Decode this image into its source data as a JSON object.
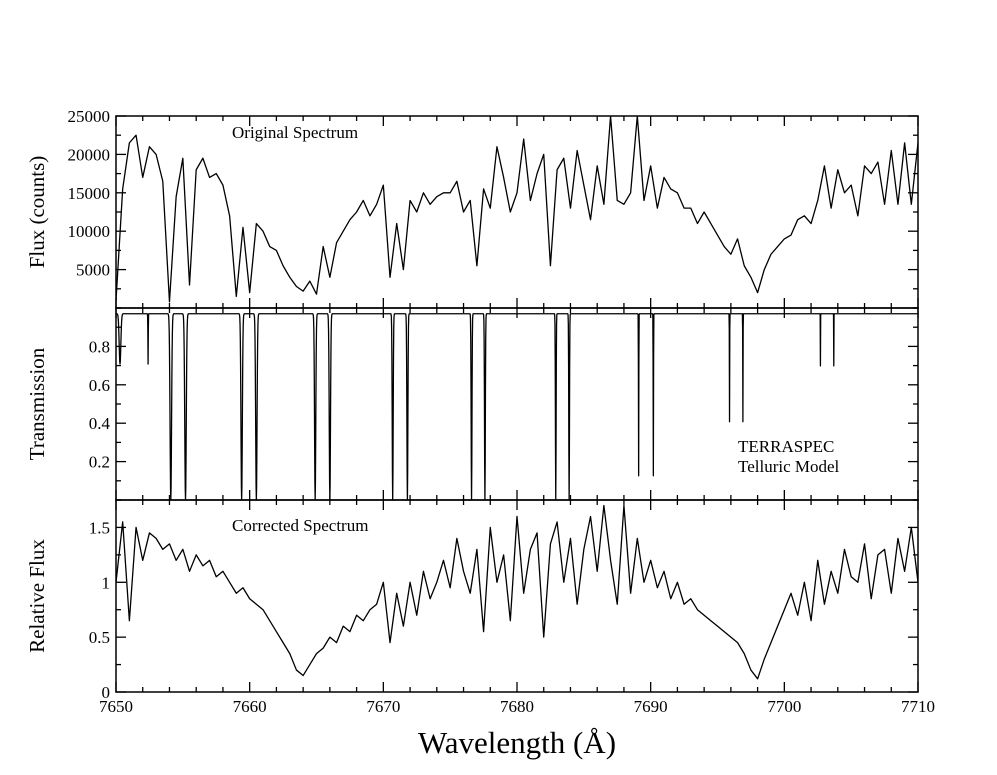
{
  "chart_data": {
    "type": "line",
    "xlabel": "Wavelength (Å)",
    "xlim": [
      7650,
      7710
    ],
    "xticks": [
      7650,
      7660,
      7670,
      7680,
      7690,
      7700,
      7710
    ],
    "panels": [
      {
        "id": "original",
        "ylabel": "Flux (counts)",
        "ylim": [
          0,
          25000
        ],
        "yticks": [
          5000,
          10000,
          15000,
          20000,
          25000
        ],
        "annotation": "Original Spectrum",
        "series": [
          {
            "x": [
              7650.0,
              7650.5,
              7651.0,
              7651.5,
              7652.0,
              7652.5,
              7653.0,
              7653.5,
              7654.0,
              7654.5,
              7655.0,
              7655.5,
              7656.0,
              7656.5,
              7657.0,
              7657.5,
              7658.0,
              7658.5,
              7659.0,
              7659.5,
              7660.0,
              7660.5,
              7661.0,
              7661.5,
              7662.0,
              7662.5,
              7663.0,
              7663.5,
              7664.0,
              7664.5,
              7665.0,
              7665.5,
              7666.0,
              7666.5,
              7667.0,
              7667.5,
              7668.0,
              7668.5,
              7669.0,
              7669.5,
              7670.0,
              7670.5,
              7671.0,
              7671.5,
              7672.0,
              7672.5,
              7673.0,
              7673.5,
              7674.0,
              7674.5,
              7675.0,
              7675.5,
              7676.0,
              7676.5,
              7677.0,
              7677.5,
              7678.0,
              7678.5,
              7679.0,
              7679.5,
              7680.0,
              7680.5,
              7681.0,
              7681.5,
              7682.0,
              7682.5,
              7683.0,
              7683.5,
              7684.0,
              7684.5,
              7685.0,
              7685.5,
              7686.0,
              7686.5,
              7687.0,
              7687.5,
              7688.0,
              7688.5,
              7689.0,
              7689.5,
              7690.0,
              7690.5,
              7691.0,
              7691.5,
              7692.0,
              7692.5,
              7693.0,
              7693.5,
              7694.0,
              7694.5,
              7695.0,
              7695.5,
              7696.0,
              7696.5,
              7697.0,
              7697.5,
              7698.0,
              7698.5,
              7699.0,
              7699.5,
              7700.0,
              7700.5,
              7701.0,
              7701.5,
              7702.0,
              7702.5,
              7703.0,
              7703.5,
              7704.0,
              7704.5,
              7705.0,
              7705.5,
              7706.0,
              7706.5,
              7707.0,
              7707.5,
              7708.0,
              7708.5,
              7709.0,
              7709.5,
              7710.0
            ],
            "y": [
              1000,
              15500,
              21500,
              22500,
              17000,
              21000,
              20000,
              16500,
              800,
              14500,
              19500,
              3000,
              18000,
              19500,
              17000,
              17500,
              16000,
              12000,
              1500,
              10500,
              2000,
              11000,
              10000,
              8000,
              7500,
              5500,
              4000,
              2800,
              2200,
              3500,
              1800,
              8000,
              4000,
              8500,
              10000,
              11500,
              12500,
              14000,
              12000,
              13500,
              16000,
              4000,
              11000,
              5000,
              14000,
              12500,
              15000,
              13500,
              14500,
              15000,
              15000,
              16500,
              12500,
              14000,
              5500,
              15500,
              13000,
              21000,
              17000,
              12500,
              15000,
              22000,
              14000,
              17500,
              20000,
              5500,
              18000,
              19500,
              13000,
              20500,
              16000,
              11500,
              18500,
              13500,
              25000,
              14000,
              13500,
              15000,
              25000,
              14000,
              18500,
              13000,
              17000,
              15500,
              15000,
              13000,
              13000,
              11000,
              12500,
              11000,
              9500,
              8000,
              7000,
              9000,
              5500,
              4000,
              2000,
              5000,
              7000,
              8000,
              9000,
              9500,
              11500,
              12000,
              11000,
              14000,
              18500,
              13000,
              18000,
              15000,
              16000,
              12000,
              18500,
              17500,
              19000,
              13500,
              20500,
              13500,
              21500,
              13500,
              21500
            ]
          }
        ]
      },
      {
        "id": "telluric",
        "ylabel": "Transmission",
        "ylim": [
          0,
          1.0
        ],
        "yticks": [
          0.2,
          0.4,
          0.6,
          0.8
        ],
        "annotation": [
          "TERRASPEC",
          "Telluric Model"
        ],
        "series": [
          {
            "continuum": 0.97,
            "lines": [
              {
                "x": 7650.3,
                "depth": 0.27,
                "w": 0.25
              },
              {
                "x": 7652.4,
                "depth": 0.27,
                "w": 0.05
              },
              {
                "x": 7654.1,
                "depth": 1.0,
                "w": 0.22
              },
              {
                "x": 7655.2,
                "depth": 1.0,
                "w": 0.22
              },
              {
                "x": 7659.4,
                "depth": 1.0,
                "w": 0.2
              },
              {
                "x": 7660.5,
                "depth": 1.0,
                "w": 0.2
              },
              {
                "x": 7664.9,
                "depth": 1.0,
                "w": 0.18
              },
              {
                "x": 7666.0,
                "depth": 1.0,
                "w": 0.18
              },
              {
                "x": 7670.7,
                "depth": 1.0,
                "w": 0.14
              },
              {
                "x": 7671.8,
                "depth": 1.0,
                "w": 0.14
              },
              {
                "x": 7676.6,
                "depth": 1.0,
                "w": 0.12
              },
              {
                "x": 7677.6,
                "depth": 1.0,
                "w": 0.12
              },
              {
                "x": 7682.9,
                "depth": 1.0,
                "w": 0.1
              },
              {
                "x": 7683.9,
                "depth": 1.0,
                "w": 0.1
              },
              {
                "x": 7689.1,
                "depth": 0.87,
                "w": 0.05
              },
              {
                "x": 7690.2,
                "depth": 0.87,
                "w": 0.05
              },
              {
                "x": 7695.9,
                "depth": 0.58,
                "w": 0.04
              },
              {
                "x": 7696.9,
                "depth": 0.58,
                "w": 0.04
              },
              {
                "x": 7702.7,
                "depth": 0.28,
                "w": 0.03
              },
              {
                "x": 7703.7,
                "depth": 0.28,
                "w": 0.03
              }
            ]
          }
        ]
      },
      {
        "id": "corrected",
        "ylabel": "Relative Flux",
        "ylim": [
          0,
          1.75
        ],
        "yticks": [
          0,
          0.5,
          1,
          1.5
        ],
        "annotation": "Corrected Spectrum",
        "series": [
          {
            "x": [
              7650.0,
              7650.5,
              7651.0,
              7651.5,
              7652.0,
              7652.5,
              7653.0,
              7653.5,
              7654.0,
              7654.5,
              7655.0,
              7655.5,
              7656.0,
              7656.5,
              7657.0,
              7657.5,
              7658.0,
              7658.5,
              7659.0,
              7659.5,
              7660.0,
              7660.5,
              7661.0,
              7661.5,
              7662.0,
              7662.5,
              7663.0,
              7663.5,
              7664.0,
              7664.5,
              7665.0,
              7665.5,
              7666.0,
              7666.5,
              7667.0,
              7667.5,
              7668.0,
              7668.5,
              7669.0,
              7669.5,
              7670.0,
              7670.5,
              7671.0,
              7671.5,
              7672.0,
              7672.5,
              7673.0,
              7673.5,
              7674.0,
              7674.5,
              7675.0,
              7675.5,
              7676.0,
              7676.5,
              7677.0,
              7677.5,
              7678.0,
              7678.5,
              7679.0,
              7679.5,
              7680.0,
              7680.5,
              7681.0,
              7681.5,
              7682.0,
              7682.5,
              7683.0,
              7683.5,
              7684.0,
              7684.5,
              7685.0,
              7685.5,
              7686.0,
              7686.5,
              7687.0,
              7687.5,
              7688.0,
              7688.5,
              7689.0,
              7689.5,
              7690.0,
              7690.5,
              7691.0,
              7691.5,
              7692.0,
              7692.5,
              7693.0,
              7693.5,
              7694.0,
              7694.5,
              7695.0,
              7695.5,
              7696.0,
              7696.5,
              7697.0,
              7697.5,
              7698.0,
              7698.5,
              7699.0,
              7699.5,
              7700.0,
              7700.5,
              7701.0,
              7701.5,
              7702.0,
              7702.5,
              7703.0,
              7703.5,
              7704.0,
              7704.5,
              7705.0,
              7705.5,
              7706.0,
              7706.5,
              7707.0,
              7707.5,
              7708.0,
              7708.5,
              7709.0,
              7709.5,
              7710.0
            ],
            "y": [
              1.0,
              1.55,
              0.65,
              1.5,
              1.2,
              1.45,
              1.4,
              1.3,
              1.35,
              1.2,
              1.3,
              1.1,
              1.25,
              1.15,
              1.2,
              1.05,
              1.1,
              1.0,
              0.9,
              0.95,
              0.85,
              0.8,
              0.75,
              0.65,
              0.55,
              0.45,
              0.35,
              0.2,
              0.15,
              0.25,
              0.35,
              0.4,
              0.5,
              0.45,
              0.6,
              0.55,
              0.7,
              0.65,
              0.75,
              0.8,
              1.0,
              0.45,
              0.9,
              0.6,
              1.0,
              0.7,
              1.1,
              0.85,
              1.0,
              1.2,
              0.95,
              1.4,
              1.1,
              0.9,
              1.3,
              0.55,
              1.5,
              1.0,
              1.25,
              0.65,
              1.6,
              0.9,
              1.3,
              1.45,
              0.5,
              1.35,
              1.55,
              1.0,
              1.4,
              0.8,
              1.3,
              1.6,
              1.1,
              1.7,
              1.2,
              0.8,
              1.7,
              0.9,
              1.4,
              1.0,
              1.2,
              0.95,
              1.1,
              0.85,
              1.0,
              0.8,
              0.85,
              0.75,
              0.7,
              0.65,
              0.6,
              0.55,
              0.5,
              0.45,
              0.35,
              0.2,
              0.12,
              0.3,
              0.45,
              0.6,
              0.75,
              0.9,
              0.7,
              1.0,
              0.65,
              1.2,
              0.8,
              1.1,
              0.9,
              1.3,
              1.05,
              1.0,
              1.35,
              0.85,
              1.25,
              1.3,
              0.9,
              1.4,
              1.1,
              1.5,
              1.0
            ]
          }
        ]
      }
    ]
  }
}
